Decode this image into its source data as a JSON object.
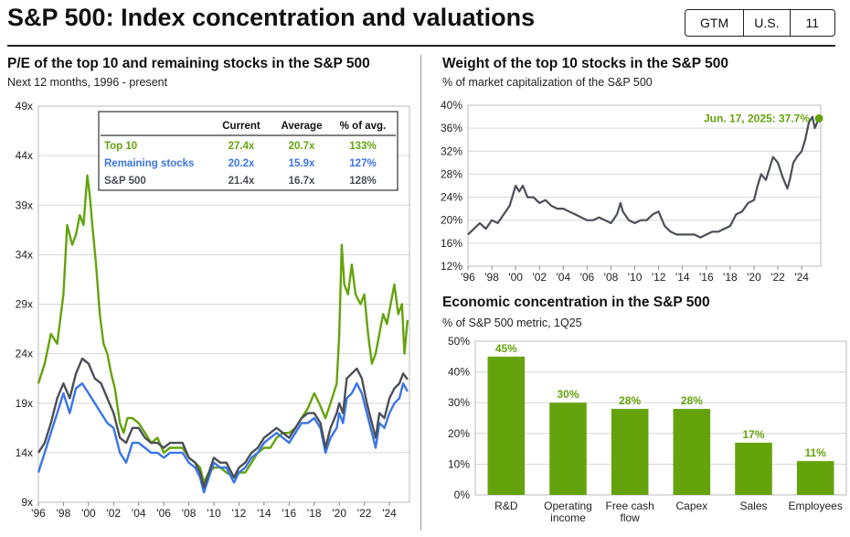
{
  "page": {
    "title": "S&P 500: Index concentration and valuations",
    "tags": [
      "GTM",
      "U.S.",
      "11"
    ]
  },
  "colors": {
    "green": "#65a30d",
    "blue": "#3b74e6",
    "gray": "#4b4f57"
  },
  "chart_data": [
    {
      "type": "line",
      "title": "P/E of the top 10 and remaining stocks in the S&P 500",
      "subtitle": "Next 12 months, 1996 - present",
      "ylim": [
        9,
        49
      ],
      "xlim": [
        1996.0,
        2025.6
      ],
      "yticks": [
        9,
        14,
        19,
        24,
        29,
        34,
        39,
        44,
        49
      ],
      "ytick_labels": [
        "9x",
        "14x",
        "19x",
        "24x",
        "29x",
        "34x",
        "39x",
        "44x",
        "49x"
      ],
      "xticks": [
        1996,
        1998,
        2000,
        2002,
        2004,
        2006,
        2008,
        2010,
        2012,
        2014,
        2016,
        2018,
        2020,
        2022,
        2024
      ],
      "xtick_labels": [
        "'96",
        "'98",
        "'00",
        "'02",
        "'04",
        "'06",
        "'08",
        "'10",
        "'12",
        "'14",
        "'16",
        "'18",
        "'20",
        "'22",
        "'24"
      ],
      "series": [
        {
          "name": "Top 10",
          "color": "#65a30d",
          "x": [
            1996.0,
            1996.5,
            1997.0,
            1997.5,
            1998.0,
            1998.3,
            1998.7,
            1999.0,
            1999.3,
            1999.6,
            1999.9,
            2000.1,
            2000.3,
            2000.6,
            2000.9,
            2001.2,
            2001.5,
            2001.8,
            2002.1,
            2002.5,
            2002.8,
            2003.1,
            2003.5,
            2004.0,
            2004.5,
            2005.0,
            2005.5,
            2006.0,
            2006.5,
            2007.0,
            2007.5,
            2008.0,
            2008.5,
            2008.9,
            2009.2,
            2009.6,
            2010.0,
            2010.5,
            2011.0,
            2011.6,
            2012.0,
            2012.5,
            2013.0,
            2013.5,
            2014.0,
            2014.5,
            2015.0,
            2015.5,
            2016.0,
            2016.5,
            2017.0,
            2017.5,
            2018.0,
            2018.4,
            2018.9,
            2019.3,
            2019.8,
            2020.0,
            2020.2,
            2020.4,
            2020.7,
            2021.0,
            2021.3,
            2021.7,
            2022.0,
            2022.3,
            2022.6,
            2022.9,
            2023.2,
            2023.5,
            2023.8,
            2024.1,
            2024.4,
            2024.7,
            2025.0,
            2025.2,
            2025.45
          ],
          "values": [
            21,
            23,
            26,
            25,
            30,
            37,
            35,
            36,
            38,
            37,
            42,
            40,
            37,
            33,
            28,
            25,
            24,
            22,
            20.5,
            17,
            16,
            17.5,
            17.5,
            17,
            16,
            15,
            15.5,
            14,
            14.5,
            14.5,
            14.5,
            13.5,
            13,
            12.5,
            11,
            12,
            12.5,
            12.5,
            12,
            11.5,
            12,
            12,
            13,
            14,
            14.5,
            14.5,
            15.5,
            16,
            16,
            16.5,
            17.5,
            18.5,
            20,
            19,
            17.5,
            19,
            21,
            26,
            35,
            31,
            30,
            33,
            30,
            29,
            30,
            26,
            23,
            24,
            26,
            28,
            27,
            29,
            31,
            28,
            29,
            24,
            27.4
          ]
        },
        {
          "name": "Remaining stocks",
          "color": "#3b74e6",
          "x": [
            1996.0,
            1996.5,
            1997.0,
            1997.5,
            1998.0,
            1998.5,
            1999.0,
            1999.5,
            2000.0,
            2000.5,
            2001.0,
            2001.5,
            2002.0,
            2002.5,
            2003.0,
            2003.5,
            2004.0,
            2004.5,
            2005.0,
            2005.5,
            2006.0,
            2006.5,
            2007.0,
            2007.5,
            2008.0,
            2008.5,
            2008.9,
            2009.2,
            2009.6,
            2010.0,
            2010.5,
            2011.0,
            2011.6,
            2012.0,
            2012.5,
            2013.0,
            2013.5,
            2014.0,
            2014.5,
            2015.0,
            2015.5,
            2016.0,
            2016.5,
            2017.0,
            2017.5,
            2018.0,
            2018.5,
            2018.9,
            2019.3,
            2019.8,
            2020.0,
            2020.3,
            2020.6,
            2021.0,
            2021.4,
            2021.8,
            2022.2,
            2022.6,
            2022.9,
            2023.2,
            2023.6,
            2024.0,
            2024.4,
            2024.8,
            2025.1,
            2025.45
          ],
          "values": [
            12,
            14,
            16,
            18,
            20,
            18,
            20.5,
            21,
            20,
            19,
            18,
            17,
            16.5,
            14,
            13,
            15,
            15,
            14.5,
            14,
            14,
            13.5,
            14,
            14,
            14,
            13,
            12.5,
            11.5,
            10,
            11.5,
            13,
            12.5,
            12.5,
            11,
            12,
            12.5,
            13.5,
            14,
            15,
            15.5,
            16,
            15.5,
            15,
            16,
            17,
            17,
            17.5,
            16.5,
            14,
            15.5,
            16.5,
            18,
            17,
            19.5,
            20,
            21,
            20,
            18,
            16,
            14.5,
            17,
            16.5,
            18,
            19,
            19.5,
            21,
            20.2
          ]
        },
        {
          "name": "S&P 500",
          "color": "#4b4f57",
          "x": [
            1996.0,
            1996.5,
            1997.0,
            1997.5,
            1998.0,
            1998.5,
            1999.0,
            1999.5,
            2000.0,
            2000.5,
            2001.0,
            2001.5,
            2002.0,
            2002.5,
            2003.0,
            2003.5,
            2004.0,
            2004.5,
            2005.0,
            2005.5,
            2006.0,
            2006.5,
            2007.0,
            2007.5,
            2008.0,
            2008.5,
            2008.9,
            2009.2,
            2009.6,
            2010.0,
            2010.5,
            2011.0,
            2011.6,
            2012.0,
            2012.5,
            2013.0,
            2013.5,
            2014.0,
            2014.5,
            2015.0,
            2015.5,
            2016.0,
            2016.5,
            2017.0,
            2017.5,
            2018.0,
            2018.5,
            2018.9,
            2019.3,
            2019.8,
            2020.0,
            2020.3,
            2020.6,
            2021.0,
            2021.4,
            2021.8,
            2022.2,
            2022.6,
            2022.9,
            2023.2,
            2023.6,
            2024.0,
            2024.4,
            2024.8,
            2025.1,
            2025.45
          ],
          "values": [
            14,
            15,
            17,
            19.5,
            21,
            19.5,
            22,
            23.5,
            23,
            21.5,
            21,
            19.5,
            18,
            15.5,
            15,
            16.5,
            16.5,
            15.5,
            15,
            15,
            14.5,
            15,
            15,
            15,
            13.5,
            13,
            12,
            10.5,
            12,
            13.5,
            13,
            13,
            11.5,
            12.5,
            13,
            14,
            14.5,
            15.5,
            16,
            16.5,
            16,
            15.5,
            16.5,
            17.5,
            18,
            18,
            17,
            14.5,
            16.5,
            18,
            19,
            18,
            21.5,
            22,
            22.5,
            21.5,
            19,
            17,
            15.5,
            18,
            17.5,
            19.5,
            20.5,
            21,
            22,
            21.4
          ]
        }
      ],
      "table": {
        "headers": [
          "Current",
          "Average",
          "% of avg."
        ],
        "rows": [
          {
            "label": "Top 10",
            "current": "27.4x",
            "average": "20.7x",
            "pct": "133%",
            "color": "#65a30d"
          },
          {
            "label": "Remaining stocks",
            "current": "20.2x",
            "average": "15.9x",
            "pct": "127%",
            "color": "#3b74e6"
          },
          {
            "label": "S&P 500",
            "current": "21.4x",
            "average": "16.7x",
            "pct": "128%",
            "color": "#4b4f57"
          }
        ]
      }
    },
    {
      "type": "line",
      "title": "Weight of the top 10 stocks in the S&P 500",
      "subtitle": "% of market capitalization of the S&P 500",
      "ylim": [
        12,
        40
      ],
      "xlim": [
        1996.0,
        2025.6
      ],
      "yticks": [
        12,
        16,
        20,
        24,
        28,
        32,
        36,
        40
      ],
      "ytick_labels": [
        "12%",
        "16%",
        "20%",
        "24%",
        "28%",
        "32%",
        "36%",
        "40%"
      ],
      "xticks": [
        1996,
        1998,
        2000,
        2002,
        2004,
        2006,
        2008,
        2010,
        2012,
        2014,
        2016,
        2018,
        2020,
        2022,
        2024
      ],
      "xtick_labels": [
        "'96",
        "'98",
        "'00",
        "'02",
        "'04",
        "'06",
        "'08",
        "'10",
        "'12",
        "'14",
        "'16",
        "'18",
        "'20",
        "'22",
        "'24"
      ],
      "annotation": "Jun. 17, 2025: 37.7%",
      "series": [
        {
          "name": "Top 10 weight",
          "color": "#4b4f57",
          "x": [
            1996.0,
            1996.5,
            1997.0,
            1997.5,
            1998.0,
            1998.5,
            1999.0,
            1999.5,
            2000.0,
            2000.3,
            2000.6,
            2001.0,
            2001.5,
            2002.0,
            2002.5,
            2003.0,
            2003.5,
            2004.0,
            2004.5,
            2005.0,
            2005.5,
            2006.0,
            2006.5,
            2007.0,
            2007.5,
            2008.0,
            2008.5,
            2008.8,
            2009.0,
            2009.5,
            2010.0,
            2010.5,
            2011.0,
            2011.5,
            2012.0,
            2012.5,
            2013.0,
            2013.5,
            2014.0,
            2014.5,
            2015.0,
            2015.5,
            2016.0,
            2016.5,
            2017.0,
            2017.5,
            2018.0,
            2018.5,
            2019.0,
            2019.5,
            2020.0,
            2020.3,
            2020.6,
            2021.0,
            2021.3,
            2021.6,
            2022.0,
            2022.4,
            2022.8,
            2023.0,
            2023.3,
            2023.6,
            2024.0,
            2024.3,
            2024.6,
            2024.9,
            2025.1,
            2025.45
          ],
          "values": [
            17.5,
            18.5,
            19.5,
            18.5,
            20,
            19.5,
            21,
            22.5,
            26,
            25,
            26,
            24,
            24,
            23,
            23.5,
            22.5,
            22,
            22,
            21.5,
            21,
            20.5,
            20,
            20,
            20.5,
            20,
            19.5,
            21,
            23,
            21.5,
            20,
            19.5,
            20,
            20,
            21,
            21.5,
            19,
            18,
            17.5,
            17.5,
            17.5,
            17.5,
            17,
            17.5,
            18,
            18,
            18.5,
            19,
            21,
            21.5,
            23,
            23.5,
            26,
            28,
            27,
            29,
            31,
            30,
            27.5,
            25.5,
            27,
            30,
            31,
            32,
            34,
            37,
            38,
            36,
            37.7
          ]
        }
      ]
    },
    {
      "type": "bar",
      "title": "Economic concentration in the S&P 500",
      "subtitle": "% of S&P 500 metric, 1Q25",
      "categories": [
        "R&D",
        "Operating income",
        "Free cash flow",
        "Capex",
        "Sales",
        "Employees"
      ],
      "category_lines": [
        [
          "R&D"
        ],
        [
          "Operating",
          "income"
        ],
        [
          "Free cash",
          "flow"
        ],
        [
          "Capex"
        ],
        [
          "Sales"
        ],
        [
          "Employees"
        ]
      ],
      "values": [
        45,
        30,
        28,
        28,
        17,
        11
      ],
      "value_labels": [
        "45%",
        "30%",
        "28%",
        "28%",
        "17%",
        "11%"
      ],
      "ylim": [
        0,
        50
      ],
      "yticks": [
        0,
        10,
        20,
        30,
        40,
        50
      ],
      "ytick_labels": [
        "0%",
        "10%",
        "20%",
        "30%",
        "40%",
        "50%"
      ],
      "color": "#65a30d"
    }
  ]
}
